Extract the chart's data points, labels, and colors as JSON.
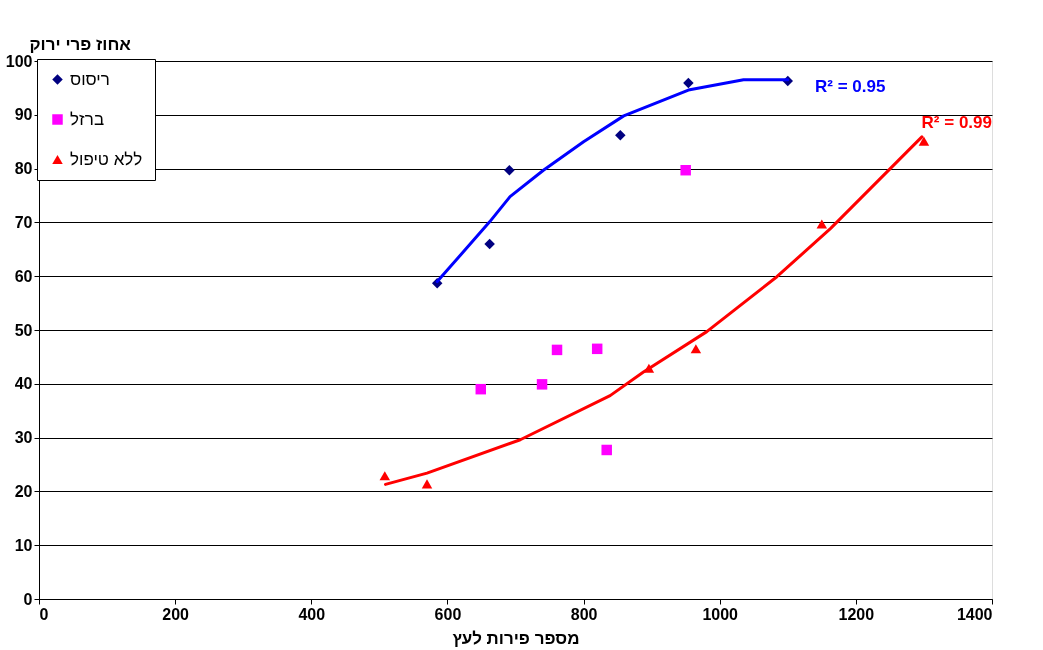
{
  "chart_data": {
    "type": "scatter",
    "xlabel": "מספר פירות לעץ",
    "ylabel": "אחוז פרי ירוק",
    "xlim": [
      0,
      1400
    ],
    "xticks": [
      0,
      200,
      400,
      600,
      800,
      1000,
      1200,
      1400
    ],
    "ylim": [
      0,
      100
    ],
    "yticks": [
      0,
      10,
      20,
      30,
      40,
      50,
      60,
      70,
      80,
      90,
      100
    ],
    "grid": "y",
    "legend": "top left",
    "series": [
      {
        "name": "ריסוס",
        "marker": "diamond",
        "color": "#000080",
        "x": [
          585,
          662,
          691,
          854,
          954,
          1100
        ],
        "values": [
          58.7,
          66.0,
          79.7,
          86.2,
          95.9,
          96.3
        ]
      },
      {
        "name": "ברזל",
        "marker": "square",
        "color": "#ff00ff",
        "x": [
          649,
          739,
          761,
          820,
          834,
          950
        ],
        "values": [
          39.0,
          39.9,
          46.3,
          46.5,
          27.7,
          79.7
        ]
      },
      {
        "name": "ללא טיפול",
        "marker": "triangle",
        "color": "#ff0000",
        "x": [
          508,
          570,
          896,
          965,
          1150,
          1300
        ],
        "values": [
          22.9,
          21.4,
          42.9,
          46.5,
          69.7,
          85.1
        ]
      },
      {
        "type": "line",
        "line_style": "solid",
        "color": "#0000ff",
        "x": [
          585,
          662,
          692,
          741,
          800,
          859,
          954,
          1035,
          1100
        ],
        "values": [
          59.0,
          70.1,
          74.8,
          79.7,
          85.0,
          89.8,
          94.6,
          96.5,
          96.5
        ]
      },
      {
        "type": "line",
        "line_style": "solid",
        "color": "#ff0000",
        "x": [
          509,
          570,
          707,
          839,
          888,
          981,
          1084,
          1163,
          1275,
          1297
        ],
        "values": [
          21.3,
          23.4,
          29.6,
          37.8,
          42.2,
          49.7,
          59.9,
          68.9,
          83.1,
          85.9
        ]
      }
    ],
    "annotations": [
      "R² = 0.95",
      "R² = 0.99"
    ]
  }
}
